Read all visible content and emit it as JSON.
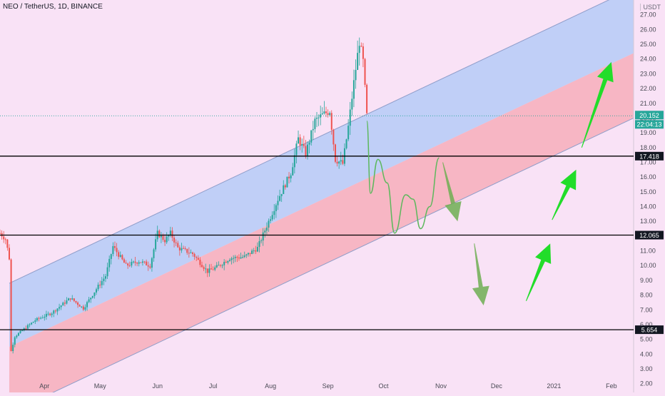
{
  "chart_data": {
    "type": "candlestick",
    "title": "NEO / TetherUS, 1D, BINANCE",
    "y_unit": "USDT",
    "ylim": [
      1.5,
      28.0
    ],
    "y_ticks": [
      2,
      3,
      4,
      5,
      6,
      7,
      8,
      9,
      10,
      11,
      12,
      13,
      14,
      15,
      16,
      17,
      18,
      19,
      20,
      21,
      22,
      23,
      24,
      25,
      26,
      27
    ],
    "x_ticks": [
      "Apr",
      "May",
      "Jun",
      "Jul",
      "Aug",
      "Sep",
      "Oct",
      "Nov",
      "Dec",
      "2021",
      "Feb"
    ],
    "x_tick_dates": [
      "2020-04-01",
      "2020-05-01",
      "2020-06-01",
      "2020-07-01",
      "2020-08-01",
      "2020-09-01",
      "2020-10-01",
      "2020-11-01",
      "2020-12-01",
      "2021-01-01",
      "2021-02-01"
    ],
    "xlim": [
      "2020-03-08",
      "2021-02-13"
    ],
    "current_price": "20.152",
    "countdown": "22:04:13",
    "horizontal_levels": [
      {
        "value": 17.418,
        "label": "17.418"
      },
      {
        "value": 12.065,
        "label": "12.065"
      },
      {
        "value": 5.654,
        "label": "5.654"
      }
    ],
    "channel": {
      "upper_start": [
        "2020-03-13",
        8.8
      ],
      "upper_end": [
        "2021-02-13",
        28.8
      ],
      "mid_start": [
        "2020-03-13",
        4.5
      ],
      "mid_end": [
        "2021-02-13",
        24.4
      ],
      "lower_start": [
        "2020-03-13",
        0.0
      ],
      "lower_end": [
        "2021-02-13",
        20.0
      ],
      "upper_fill": "#b9cdf7",
      "lower_fill": "#f6b1bf",
      "line_color": "#8f9dc9"
    },
    "price_anchors": [
      [
        "2020-03-08",
        12.2
      ],
      [
        "2020-03-11",
        11.8
      ],
      [
        "2020-03-13",
        10.5
      ],
      [
        "2020-03-14",
        4.2
      ],
      [
        "2020-03-16",
        5.2
      ],
      [
        "2020-03-20",
        5.6
      ],
      [
        "2020-03-27",
        6.3
      ],
      [
        "2020-04-05",
        6.8
      ],
      [
        "2020-04-15",
        7.8
      ],
      [
        "2020-04-22",
        7.1
      ],
      [
        "2020-04-30",
        8.6
      ],
      [
        "2020-05-04",
        9.3
      ],
      [
        "2020-05-08",
        11.3
      ],
      [
        "2020-05-15",
        10.0
      ],
      [
        "2020-05-22",
        10.3
      ],
      [
        "2020-05-28",
        10.0
      ],
      [
        "2020-06-01",
        12.2
      ],
      [
        "2020-06-05",
        11.7
      ],
      [
        "2020-06-08",
        12.2
      ],
      [
        "2020-06-12",
        11.2
      ],
      [
        "2020-06-20",
        10.8
      ],
      [
        "2020-06-28",
        9.6
      ],
      [
        "2020-07-03",
        9.9
      ],
      [
        "2020-07-10",
        10.5
      ],
      [
        "2020-07-18",
        10.6
      ],
      [
        "2020-07-25",
        11.2
      ],
      [
        "2020-07-31",
        13.0
      ],
      [
        "2020-08-05",
        14.5
      ],
      [
        "2020-08-12",
        16.3
      ],
      [
        "2020-08-16",
        18.6
      ],
      [
        "2020-08-20",
        17.6
      ],
      [
        "2020-08-25",
        19.8
      ],
      [
        "2020-08-29",
        20.2
      ],
      [
        "2020-09-02",
        20.5
      ],
      [
        "2020-09-05",
        17.2
      ],
      [
        "2020-09-09",
        16.9
      ],
      [
        "2020-09-12",
        19.4
      ],
      [
        "2020-09-15",
        22.4
      ],
      [
        "2020-09-18",
        25.2
      ],
      [
        "2020-09-20",
        23.8
      ],
      [
        "2020-09-22",
        20.15
      ]
    ],
    "projection_path": [
      [
        "2020-09-22",
        19.8
      ],
      [
        "2020-09-24",
        14.9
      ],
      [
        "2020-09-28",
        17.2
      ],
      [
        "2020-10-03",
        15.6
      ],
      [
        "2020-10-07",
        12.2
      ],
      [
        "2020-10-13",
        14.8
      ],
      [
        "2020-10-17",
        14.5
      ],
      [
        "2020-10-21",
        12.5
      ],
      [
        "2020-10-26",
        14.0
      ],
      [
        "2020-10-31",
        17.3
      ]
    ],
    "arrows": [
      {
        "direction": "down",
        "from": [
          "2020-11-02",
          17.0
        ],
        "to": [
          "2020-11-10",
          13.0
        ]
      },
      {
        "direction": "down",
        "from": [
          "2020-11-19",
          11.5
        ],
        "to": [
          "2020-11-24",
          7.3
        ]
      },
      {
        "direction": "up",
        "from": [
          "2020-12-17",
          7.6
        ],
        "to": [
          "2020-12-30",
          11.5
        ]
      },
      {
        "direction": "up",
        "from": [
          "2020-12-31",
          13.1
        ],
        "to": [
          "2021-01-13",
          16.5
        ]
      },
      {
        "direction": "up",
        "from": [
          "2021-01-16",
          18.0
        ],
        "to": [
          "2021-02-01",
          23.8
        ]
      }
    ],
    "colors": {
      "up": "#26a69a",
      "down": "#ef5350",
      "projection": "#5cb85c",
      "arrow": "#22dd2a",
      "level_line": "#000000"
    }
  }
}
